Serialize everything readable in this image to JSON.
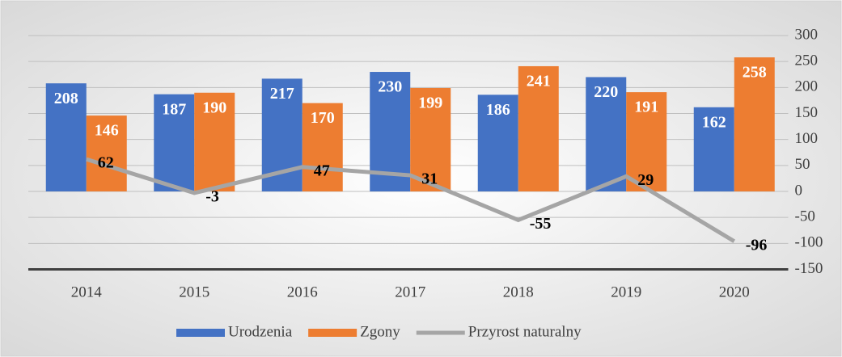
{
  "chart_data": {
    "type": "bar",
    "categories": [
      "2014",
      "2015",
      "2016",
      "2017",
      "2018",
      "2019",
      "2020"
    ],
    "series": [
      {
        "name": "Urodzenia",
        "color": "#4472c4",
        "type": "bar",
        "values": [
          208,
          187,
          217,
          230,
          186,
          220,
          162
        ]
      },
      {
        "name": "Zgony",
        "color": "#ed7d31",
        "type": "bar",
        "values": [
          146,
          190,
          170,
          199,
          241,
          191,
          258
        ]
      },
      {
        "name": "Przyrost naturalny",
        "color": "#a5a5a5",
        "type": "line",
        "values": [
          62,
          -3,
          47,
          31,
          -55,
          29,
          -96
        ]
      }
    ],
    "ylim": [
      -150,
      300
    ],
    "yticks": [
      -150,
      -100,
      -50,
      0,
      50,
      100,
      150,
      200,
      250,
      300
    ],
    "grid": true,
    "y_axis_side": "right",
    "legend": "bottom"
  }
}
